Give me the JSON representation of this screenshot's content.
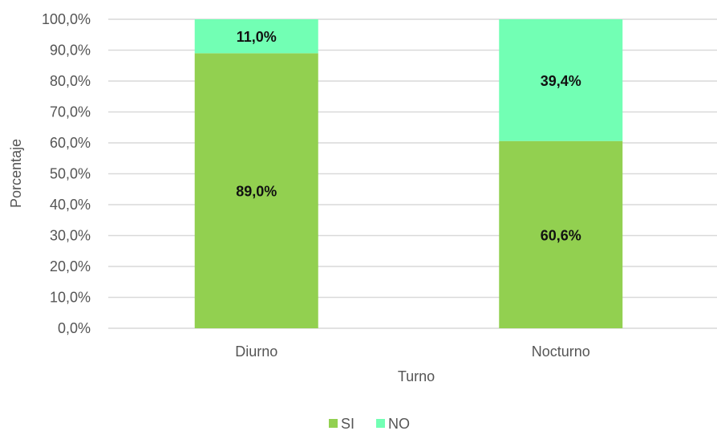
{
  "chart_data": {
    "type": "bar",
    "stacked": true,
    "categories": [
      "Diurno",
      "Nocturno"
    ],
    "series": [
      {
        "name": "SI",
        "values": [
          89.0,
          60.6
        ],
        "labels": [
          "89,0%",
          "60,6%"
        ],
        "color": "#92d050"
      },
      {
        "name": "NO",
        "values": [
          11.0,
          39.4
        ],
        "labels": [
          "11,0%",
          "39,4%"
        ],
        "color": "#72ffb4"
      }
    ],
    "xlabel": "Turno",
    "ylabel": "Porcentaje",
    "ylim": [
      0,
      100
    ],
    "yticks": [
      "0,0%",
      "10,0%",
      "20,0%",
      "30,0%",
      "40,0%",
      "50,0%",
      "60,0%",
      "70,0%",
      "80,0%",
      "90,0%",
      "100,0%"
    ],
    "grid": true,
    "legend_position": "bottom",
    "gridline_color": "#d9d9d9"
  }
}
